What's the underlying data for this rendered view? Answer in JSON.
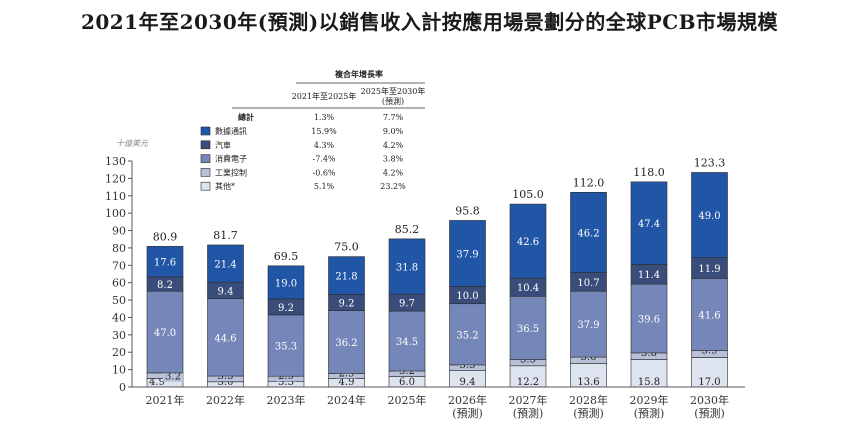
{
  "title": "2021年至2030年(預測)以銷售收入計按應用場景劃分的全球PCB市場規模",
  "chart_data": {
    "type": "bar",
    "stacked": true,
    "unit": "十億美元",
    "categories": [
      [
        "2021年"
      ],
      [
        "2022年"
      ],
      [
        "2023年"
      ],
      [
        "2024年"
      ],
      [
        "2025年"
      ],
      [
        "2026年",
        "(預測)"
      ],
      [
        "2027年",
        "(預測)"
      ],
      [
        "2028年",
        "(預測)"
      ],
      [
        "2029年",
        "(預測)"
      ],
      [
        "2030年",
        "(預測)"
      ]
    ],
    "ylim": [
      0,
      130
    ],
    "yticks": [
      0,
      10,
      20,
      30,
      40,
      50,
      60,
      70,
      80,
      90,
      100,
      110,
      120,
      130
    ],
    "totals": [
      "80.9",
      "81.7",
      "69.5",
      "75.0",
      "85.2",
      "95.8",
      "105.0",
      "112.0",
      "118.0",
      "123.3"
    ],
    "series": [
      {
        "name": "其他*",
        "color": "#dde3ef",
        "text_color": "#222222",
        "values": [
          4.9,
          3.0,
          3.3,
          4.9,
          6.0,
          9.4,
          12.2,
          13.6,
          15.8,
          17.0
        ]
      },
      {
        "name": "工業控制",
        "color": "#b8c1d8",
        "text_color": "#222222",
        "values": [
          3.2,
          3.3,
          2.9,
          2.9,
          3.2,
          3.3,
          3.5,
          3.6,
          3.8,
          3.9
        ]
      },
      {
        "name": "消費電子",
        "color": "#7586b9",
        "text_color": "#ffffff",
        "values": [
          47.0,
          44.6,
          35.3,
          36.2,
          34.5,
          35.2,
          36.5,
          37.9,
          39.6,
          41.6
        ]
      },
      {
        "name": "汽車",
        "color": "#3a4d7a",
        "text_color": "#ffffff",
        "values": [
          8.2,
          9.4,
          9.2,
          9.2,
          9.7,
          10.0,
          10.4,
          10.7,
          11.4,
          11.9
        ]
      },
      {
        "name": "數據通訊",
        "color": "#2156a7",
        "text_color": "#ffffff",
        "values": [
          17.6,
          21.4,
          19.0,
          21.8,
          31.8,
          37.9,
          42.6,
          46.2,
          47.4,
          49.0
        ]
      }
    ],
    "cagr_table": {
      "header": "複合年增長率",
      "col1": "2021年至2025年",
      "col2": [
        "2025年至2030年",
        "(預測)"
      ],
      "total_label": "總計",
      "total": [
        "1.3%",
        "7.7%"
      ],
      "rows": [
        {
          "name": "數據通訊",
          "color": "#2156a7",
          "v1": "15.9%",
          "v2": "9.0%"
        },
        {
          "name": "汽車",
          "color": "#3a4d7a",
          "v1": "4.3%",
          "v2": "4.2%"
        },
        {
          "name": "消費電子",
          "color": "#7586b9",
          "v1": "-7.4%",
          "v2": "3.8%"
        },
        {
          "name": "工業控制",
          "color": "#b8c1d8",
          "v1": "-0.6%",
          "v2": "4.2%"
        },
        {
          "name": "其他*",
          "color": "#dde3ef",
          "v1": "5.1%",
          "v2": "23.2%"
        }
      ]
    }
  }
}
